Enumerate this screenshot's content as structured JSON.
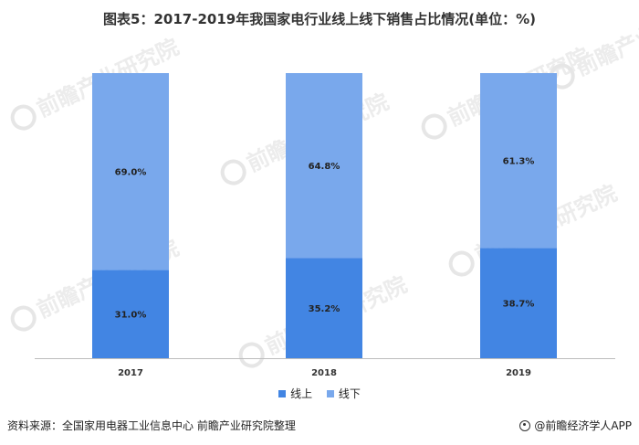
{
  "title": "图表5：2017-2019年我国家电行业线上线下销售占比情况(单位：%)",
  "colors": {
    "online": "#4285e3",
    "offline": "#79a8ec",
    "axis": "#bdbdbd"
  },
  "chart_data": {
    "type": "bar",
    "stacked": true,
    "categories": [
      "2017",
      "2018",
      "2019"
    ],
    "series": [
      {
        "name": "线上",
        "values": [
          31.0,
          35.2,
          38.7
        ],
        "labels": [
          "31.0%",
          "35.2%",
          "38.7%"
        ]
      },
      {
        "name": "线下",
        "values": [
          69.0,
          64.8,
          61.3
        ],
        "labels": [
          "69.0%",
          "64.8%",
          "61.3%"
        ]
      }
    ],
    "ylim": [
      0,
      100
    ],
    "grid": false,
    "legend_position": "bottom"
  },
  "legend": [
    {
      "label": "线上",
      "color_key": "online"
    },
    {
      "label": "线下",
      "color_key": "offline"
    }
  ],
  "footer": {
    "source": "资料来源：全国家用电器工业信息中心 前瞻产业研究院整理",
    "brand": "@前瞻经济学人APP"
  },
  "watermark": "前瞻产业研究院"
}
